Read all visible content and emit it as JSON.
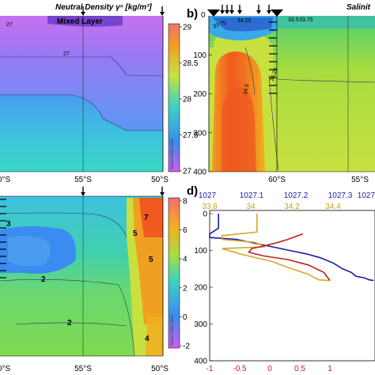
{
  "panel_labels": {
    "b": "b)",
    "d": "d)"
  },
  "odv_watermark": "Ocean Data View",
  "colors": {
    "blue_profile": "#1a1aa8",
    "gold_profile": "#d4a82a",
    "red_profile": "#c41e1e"
  },
  "chart_data": [
    {
      "id": "a",
      "type": "heatmap",
      "title": "Neutral Density γⁿ [kg/m³]",
      "annotation": "Mixed Layer",
      "x_tick_labels": [
        "0°S",
        "55°S",
        "50°S"
      ],
      "colorbar": {
        "ticks": [
          29,
          28.5,
          28,
          27.5,
          27
        ],
        "range": [
          27,
          29
        ]
      },
      "contour_labels": [
        "27",
        "27"
      ],
      "station_arrows": 2
    },
    {
      "id": "b",
      "type": "heatmap",
      "title": "Salinit",
      "y_tick_labels": [
        100,
        200,
        300,
        400
      ],
      "y_top_label": "0",
      "x_tick_labels": [
        "60°S",
        "55°S"
      ],
      "contour_labels": [
        "33.75",
        "33.5",
        "33.75",
        "34.25",
        "34.5",
        "34.25"
      ],
      "station_arrows": 6
    },
    {
      "id": "c",
      "type": "heatmap",
      "title": "",
      "x_tick_labels": [
        "0°S",
        "55°S",
        "50°S"
      ],
      "colorbar": {
        "ticks": [
          8,
          6,
          4,
          2,
          0,
          -2
        ],
        "range": [
          -2,
          8
        ]
      },
      "contour_labels": [
        "3",
        "2",
        "7",
        "5",
        "5",
        "2",
        "4"
      ],
      "station_arrows": 2
    },
    {
      "id": "d",
      "type": "line",
      "y_axis": {
        "ticks": [
          0,
          100,
          200,
          300,
          400
        ],
        "range": [
          0,
          400
        ],
        "inverted": true
      },
      "x_axes": {
        "blue_top": {
          "ticks": [
            "1027",
            "1027.1",
            "1027.2",
            "1027.3",
            "1027"
          ]
        },
        "gold_top": {
          "ticks": [
            "33.8",
            "34",
            "34.2",
            "34.4"
          ]
        },
        "red_bottom": {
          "ticks": [
            "-1",
            "-0.5",
            "0",
            "0.5",
            "1"
          ]
        }
      },
      "series": [
        {
          "color": "blue",
          "x": [
            1027.02,
            1027.02,
            1027.0,
            1027.0,
            1027.06,
            1027.12,
            1027.18,
            1027.22,
            1027.25,
            1027.28,
            1027.3,
            1027.32,
            1027.33,
            1027.35,
            1027.36,
            1027.37
          ],
          "y": [
            0,
            40,
            55,
            65,
            70,
            85,
            100,
            110,
            120,
            135,
            150,
            160,
            170,
            175,
            180,
            182
          ]
        },
        {
          "color": "gold",
          "x": [
            34.03,
            34.03,
            33.86,
            33.86,
            34.02,
            34.07,
            33.86,
            33.95,
            34.1,
            34.2,
            34.28,
            34.33,
            34.38
          ],
          "y": [
            0,
            50,
            60,
            70,
            78,
            90,
            95,
            110,
            130,
            150,
            165,
            180,
            182
          ]
        },
        {
          "color": "red",
          "x": [
            0.55,
            0.3,
            0.1,
            -0.1,
            -0.3,
            -0.35,
            -0.1,
            0.3,
            0.65,
            0.9,
            1.0
          ],
          "y": [
            55,
            70,
            80,
            88,
            95,
            105,
            115,
            125,
            140,
            160,
            182
          ]
        }
      ]
    }
  ]
}
